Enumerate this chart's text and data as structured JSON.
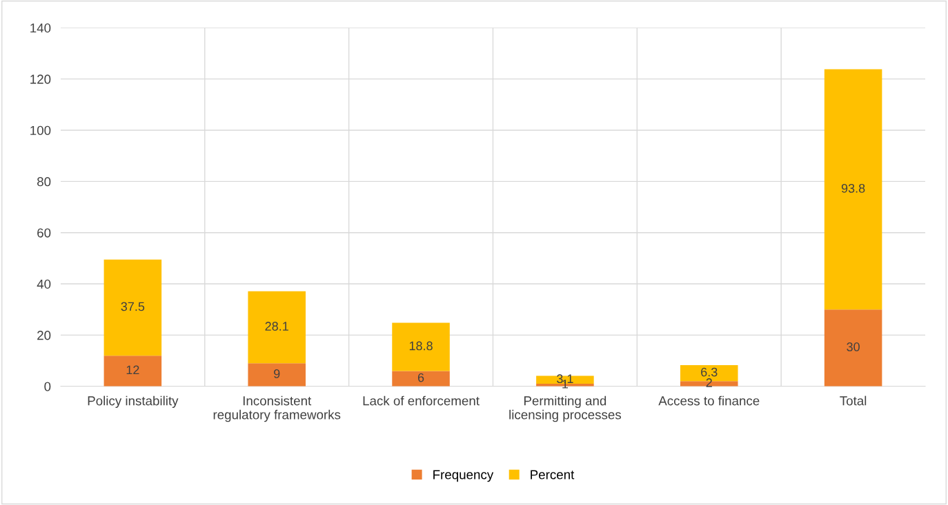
{
  "chart_data": {
    "type": "bar",
    "stacked": true,
    "categories": [
      "Policy instability",
      "Inconsistent regulatory frameworks",
      "Lack of enforcement",
      "Permitting and licensing processes",
      "Access to finance",
      "Total"
    ],
    "series": [
      {
        "name": "Frequency",
        "color": "#ed7d31",
        "values": [
          12,
          9,
          6,
          1,
          2,
          30
        ]
      },
      {
        "name": "Percent",
        "color": "#ffc000",
        "values": [
          37.5,
          28.1,
          18.8,
          3.1,
          6.3,
          93.8
        ]
      }
    ],
    "ylim": [
      0,
      140
    ],
    "yticks": [
      0,
      20,
      40,
      60,
      80,
      100,
      120,
      140
    ],
    "grid": true,
    "legend": "bottom",
    "data_labels": true
  }
}
